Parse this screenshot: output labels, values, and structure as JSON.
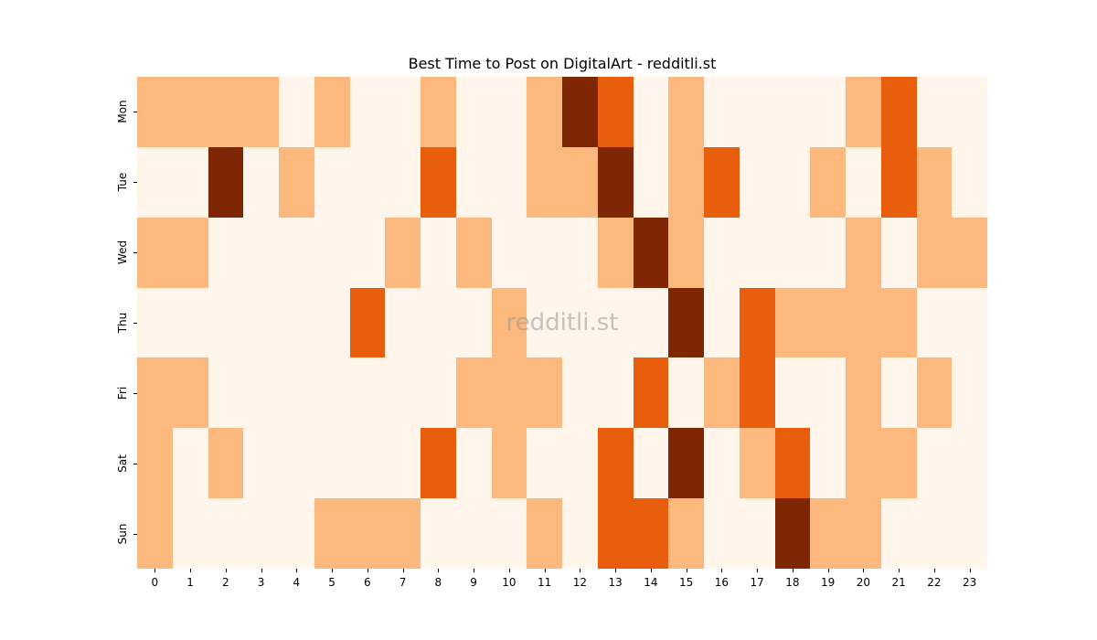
{
  "chart_data": {
    "type": "heatmap",
    "title": "Best Time to Post on DigitalArt - redditli.st",
    "xlabel": "",
    "ylabel": "",
    "x": [
      "0",
      "1",
      "2",
      "3",
      "4",
      "5",
      "6",
      "7",
      "8",
      "9",
      "10",
      "11",
      "12",
      "13",
      "14",
      "15",
      "16",
      "17",
      "18",
      "19",
      "20",
      "21",
      "22",
      "23"
    ],
    "y": [
      "Mon",
      "Tue",
      "Wed",
      "Thu",
      "Fri",
      "Sat",
      "Sun"
    ],
    "colormap": "Oranges",
    "levels": {
      "0": "#fff5eb",
      "1": "#fdb97d",
      "2": "#e95e0d",
      "3": "#7f2704"
    },
    "values": [
      [
        1,
        1,
        1,
        1,
        0,
        1,
        0,
        0,
        1,
        0,
        0,
        1,
        3,
        2,
        0,
        1,
        0,
        0,
        0,
        0,
        1,
        2,
        0,
        0
      ],
      [
        0,
        0,
        3,
        0,
        1,
        0,
        0,
        0,
        2,
        0,
        0,
        1,
        1,
        3,
        0,
        1,
        2,
        0,
        0,
        1,
        0,
        2,
        1,
        0
      ],
      [
        1,
        1,
        0,
        0,
        0,
        0,
        0,
        1,
        0,
        1,
        0,
        0,
        0,
        1,
        3,
        1,
        0,
        0,
        0,
        0,
        1,
        0,
        1,
        1
      ],
      [
        0,
        0,
        0,
        0,
        0,
        0,
        2,
        0,
        0,
        0,
        1,
        0,
        0,
        0,
        0,
        3,
        0,
        2,
        1,
        1,
        1,
        1,
        0,
        0
      ],
      [
        1,
        1,
        0,
        0,
        0,
        0,
        0,
        0,
        0,
        1,
        1,
        1,
        0,
        0,
        2,
        0,
        1,
        2,
        0,
        0,
        1,
        0,
        1,
        0
      ],
      [
        1,
        0,
        1,
        0,
        0,
        0,
        0,
        0,
        2,
        0,
        1,
        0,
        0,
        2,
        0,
        3,
        0,
        1,
        2,
        0,
        1,
        1,
        0,
        0
      ],
      [
        1,
        0,
        0,
        0,
        0,
        1,
        1,
        1,
        0,
        0,
        0,
        1,
        0,
        2,
        2,
        1,
        0,
        0,
        3,
        1,
        1,
        0,
        0,
        0
      ]
    ],
    "grid": false,
    "legend": "none",
    "watermark": "redditli.st"
  }
}
